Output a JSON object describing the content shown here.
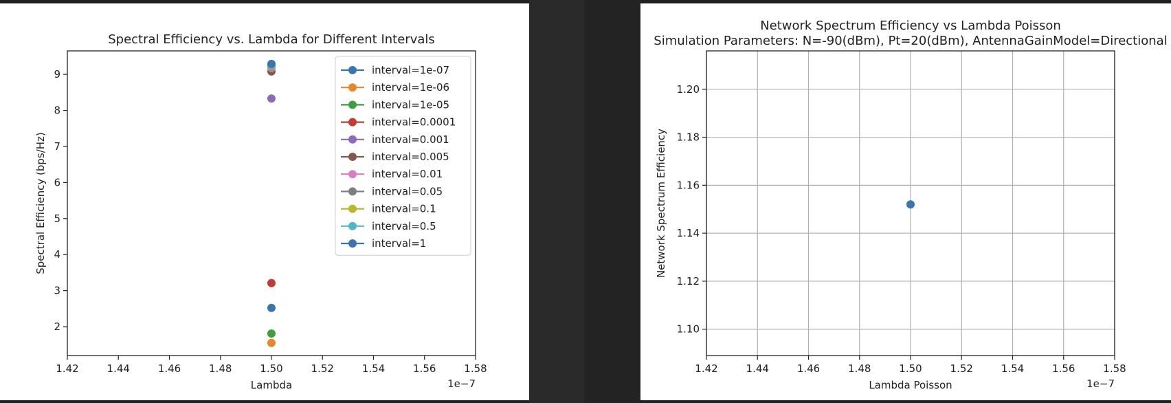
{
  "chart_data": [
    {
      "type": "scatter",
      "title": "Spectral Efficiency vs. Lambda for Different Intervals",
      "xlabel": "Lambda",
      "ylabel": "Spectral Efficiency (bps/Hz)",
      "x_offset_label": "1e−7",
      "xlim": [
        1.42,
        1.58
      ],
      "ylim": [
        1.2,
        9.65
      ],
      "xticks": [
        "1.42",
        "1.44",
        "1.46",
        "1.48",
        "1.50",
        "1.52",
        "1.54",
        "1.56",
        "1.58"
      ],
      "xtick_values": [
        1.42,
        1.44,
        1.46,
        1.48,
        1.5,
        1.52,
        1.54,
        1.56,
        1.58
      ],
      "yticks": [
        "2",
        "3",
        "4",
        "5",
        "6",
        "7",
        "8",
        "9"
      ],
      "ytick_values": [
        2,
        3,
        4,
        5,
        6,
        7,
        8,
        9
      ],
      "grid": false,
      "legend_position": "upper-right",
      "series": [
        {
          "name": "interval=1e-07",
          "color": "#3a75b0",
          "points": [
            [
              1.5,
              2.52
            ]
          ]
        },
        {
          "name": "interval=1e-06",
          "color": "#e8862a",
          "points": [
            [
              1.5,
              1.55
            ]
          ]
        },
        {
          "name": "interval=1e-05",
          "color": "#3f9e3f",
          "points": [
            [
              1.5,
              1.81
            ]
          ]
        },
        {
          "name": "interval=0.0001",
          "color": "#c53a32",
          "points": [
            [
              1.5,
              3.21
            ]
          ]
        },
        {
          "name": "interval=0.001",
          "color": "#8c6bbd",
          "points": [
            [
              1.5,
              8.33
            ]
          ]
        },
        {
          "name": "interval=0.005",
          "color": "#84594d",
          "points": [
            [
              1.5,
              9.08
            ]
          ]
        },
        {
          "name": "interval=0.01",
          "color": "#d87fc2",
          "points": [
            [
              1.5,
              9.18
            ]
          ]
        },
        {
          "name": "interval=0.05",
          "color": "#7f7f7f",
          "points": [
            [
              1.5,
              9.22
            ]
          ]
        },
        {
          "name": "interval=0.1",
          "color": "#b8b82e",
          "points": [
            [
              1.5,
              9.24
            ]
          ]
        },
        {
          "name": "interval=0.5",
          "color": "#4fb5c7",
          "points": [
            [
              1.5,
              9.26
            ]
          ]
        },
        {
          "name": "interval=1",
          "color": "#3a75b0",
          "points": [
            [
              1.5,
              9.29
            ]
          ]
        }
      ]
    },
    {
      "type": "scatter",
      "title": "Network Spectrum Efficiency vs Lambda Poisson",
      "subtitle": "Simulation Parameters: N=-90(dBm), Pt=20(dBm), AntennaGainModel=Directional",
      "xlabel": "Lambda Poisson",
      "ylabel": "Network Spectrum Efficiency",
      "x_offset_label": "1e−7",
      "xlim": [
        1.42,
        1.58
      ],
      "ylim": [
        1.089,
        1.216
      ],
      "xticks": [
        "1.42",
        "1.44",
        "1.46",
        "1.48",
        "1.50",
        "1.52",
        "1.54",
        "1.56",
        "1.58"
      ],
      "xtick_values": [
        1.42,
        1.44,
        1.46,
        1.48,
        1.5,
        1.52,
        1.54,
        1.56,
        1.58
      ],
      "yticks": [
        "1.10",
        "1.12",
        "1.14",
        "1.16",
        "1.18",
        "1.20"
      ],
      "ytick_values": [
        1.1,
        1.12,
        1.14,
        1.16,
        1.18,
        1.2
      ],
      "grid": true,
      "series": [
        {
          "color": "#3a75b0",
          "points": [
            [
              1.5,
              1.152
            ]
          ]
        }
      ]
    }
  ]
}
